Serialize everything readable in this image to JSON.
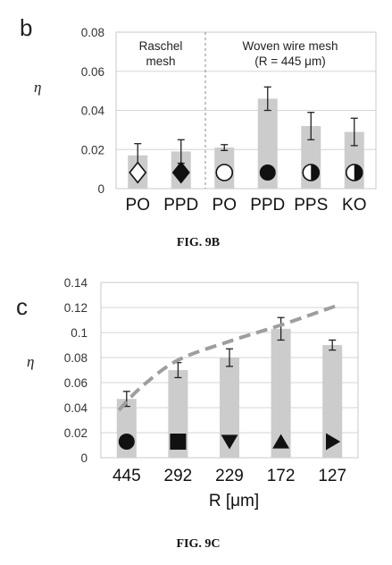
{
  "chart_data": [
    {
      "type": "bar",
      "panel_label": "b",
      "caption": "FIG. 9B",
      "ylabel": "η",
      "ylim": [
        0,
        0.08
      ],
      "yticks": [
        "0",
        "0.02",
        "0.04",
        "0.06",
        "0.08"
      ],
      "grid": true,
      "categories": [
        "PO",
        "PPD",
        "PO",
        "PPD",
        "PPS",
        "KO"
      ],
      "values": [
        0.017,
        0.019,
        0.021,
        0.046,
        0.032,
        0.029
      ],
      "errors": [
        0.006,
        0.006,
        0.0015,
        0.006,
        0.007,
        0.007
      ],
      "markers": [
        "diamond-open",
        "diamond-filled",
        "circle-open",
        "circle-filled",
        "circle-half-right",
        "circle-half-right"
      ],
      "groups": [
        {
          "lines": [
            "Raschel",
            "mesh"
          ],
          "categories": [
            0,
            1
          ]
        },
        {
          "lines": [
            "Woven wire mesh",
            "(R = 445 μm)"
          ],
          "categories": [
            2,
            3,
            4,
            5
          ]
        }
      ],
      "bar_color": "#cccccc"
    },
    {
      "type": "bar",
      "panel_label": "c",
      "caption": "FIG. 9C",
      "ylabel": "η",
      "xlabel": "R [μm]",
      "ylim": [
        0,
        0.14
      ],
      "yticks": [
        "0",
        "0.02",
        "0.04",
        "0.06",
        "0.08",
        "0.1",
        "0.12",
        "0.14"
      ],
      "grid": true,
      "categories": [
        "445",
        "292",
        "229",
        "172",
        "127"
      ],
      "values": [
        0.047,
        0.07,
        0.08,
        0.103,
        0.09
      ],
      "errors": [
        0.006,
        0.006,
        0.007,
        0.009,
        0.004
      ],
      "markers": [
        "circle-filled",
        "square-filled",
        "triangle-down-filled",
        "triangle-up-filled",
        "triangle-right-filled"
      ],
      "trend_curve": {
        "style": "dashed",
        "x_pos": [
          -0.15,
          0.3,
          1,
          2,
          3,
          4.05
        ],
        "y": [
          0.038,
          0.057,
          0.078,
          0.093,
          0.106,
          0.121
        ]
      },
      "bar_color": "#cccccc"
    }
  ]
}
